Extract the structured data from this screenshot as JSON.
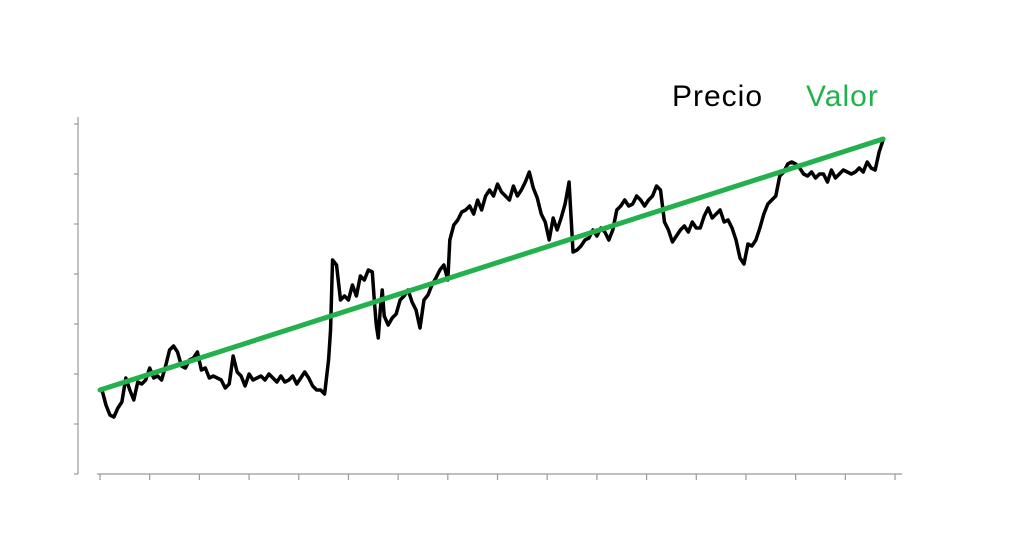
{
  "chart_data": {
    "type": "line",
    "series": [
      {
        "name": "Precio",
        "color": "#000000",
        "x": [
          2,
          6,
          10,
          14,
          18,
          22,
          26,
          30,
          34,
          38,
          42,
          46,
          50,
          54,
          58,
          62,
          66,
          70,
          74,
          78,
          82,
          86,
          90,
          94,
          98,
          102,
          106,
          110,
          114,
          118,
          122,
          126,
          130,
          134,
          138,
          142,
          146,
          150,
          154,
          158,
          162,
          166,
          170,
          174,
          178,
          182,
          186,
          190,
          194,
          198,
          202,
          206,
          210,
          214,
          218,
          222,
          226,
          230,
          232,
          234,
          238,
          242,
          246,
          250,
          254,
          258,
          262,
          266,
          270,
          274,
          276,
          278,
          280,
          282,
          284,
          286,
          290,
          294,
          298,
          302,
          306,
          310,
          314,
          318,
          322,
          326,
          330,
          334,
          338,
          342,
          346,
          350,
          352,
          356,
          360,
          364,
          368,
          372,
          376,
          380,
          384,
          388,
          392,
          396,
          400,
          404,
          408,
          412,
          416,
          420,
          424,
          428,
          432,
          436,
          440,
          444,
          448,
          452,
          456,
          460,
          464,
          468,
          472,
          476,
          480,
          484,
          488,
          492,
          496,
          500,
          504,
          508,
          512,
          516,
          520,
          524,
          528,
          532,
          536,
          540,
          544,
          548,
          552,
          556,
          560,
          564,
          568,
          572,
          576,
          580,
          584,
          588,
          592,
          596,
          600,
          604,
          608,
          612,
          616,
          620,
          624,
          628,
          632,
          636,
          640,
          644,
          648,
          652,
          656,
          660,
          664,
          668,
          672,
          676,
          680,
          684,
          688,
          692,
          696,
          700,
          704,
          708,
          712,
          716,
          720,
          724,
          728,
          732,
          736,
          740,
          744,
          748,
          752,
          756,
          760,
          764,
          768,
          772,
          776,
          780,
          784,
          788
        ],
        "values": [
          84,
          69,
          59,
          57,
          66,
          72,
          96,
          84,
          74,
          92,
          90,
          94,
          106,
          96,
          98,
          94,
          108,
          124,
          128,
          122,
          108,
          106,
          114,
          116,
          122,
          104,
          106,
          96,
          98,
          96,
          94,
          86,
          90,
          118,
          102,
          98,
          88,
          100,
          94,
          96,
          98,
          94,
          100,
          96,
          92,
          98,
          92,
          94,
          98,
          90,
          96,
          102,
          96,
          88,
          84,
          84,
          80,
          114,
          144,
          214,
          209,
          174,
          178,
          174,
          189,
          178,
          198,
          194,
          204,
          202,
          174,
          149,
          136,
          164,
          184,
          158,
          149,
          156,
          160,
          174,
          178,
          184,
          172,
          164,
          146,
          174,
          179,
          189,
          196,
          204,
          209,
          194,
          234,
          249,
          254,
          262,
          264,
          268,
          260,
          274,
          264,
          278,
          284,
          278,
          290,
          282,
          278,
          274,
          288,
          278,
          284,
          292,
          302,
          286,
          276,
          260,
          252,
          234,
          256,
          244,
          256,
          270,
          292,
          222,
          224,
          228,
          234,
          236,
          244,
          238,
          246,
          242,
          234,
          244,
          264,
          268,
          274,
          268,
          270,
          278,
          274,
          268,
          274,
          278,
          288,
          284,
          252,
          244,
          232,
          238,
          244,
          248,
          242,
          252,
          246,
          246,
          258,
          266,
          256,
          260,
          264,
          252,
          254,
          246,
          234,
          216,
          210,
          230,
          228,
          234,
          246,
          260,
          270,
          274,
          278,
          298,
          302,
          310,
          312,
          310,
          306,
          300,
          298,
          302,
          296,
          300,
          300,
          292,
          304,
          296,
          300,
          304,
          302,
          300,
          302,
          306,
          302,
          312,
          306,
          304,
          322,
          334
        ]
      },
      {
        "name": "Valor",
        "color": "#22b14c",
        "x": [
          0,
          788
        ],
        "values": [
          84,
          335
        ]
      }
    ],
    "xlim": [
      0,
      805
    ],
    "xticks": [
      0,
      50,
      100,
      150,
      200,
      250,
      300,
      350,
      400,
      450,
      500,
      550,
      600,
      650,
      700,
      750,
      800
    ],
    "ylim": [
      0,
      357
    ],
    "yticks": [
      0,
      50,
      100,
      150,
      200,
      250,
      300,
      350
    ]
  }
}
